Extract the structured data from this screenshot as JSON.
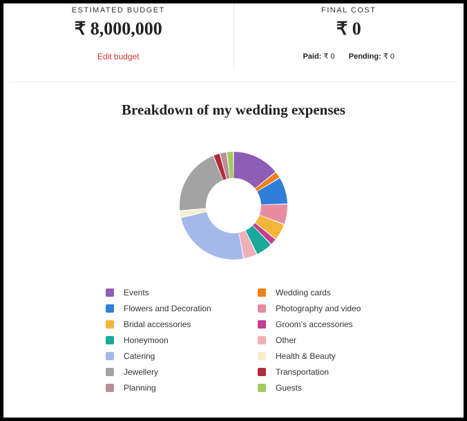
{
  "budget": {
    "label": "ESTIMATED BUDGET",
    "currency": "₹",
    "amount": "8,000,000",
    "edit_label": "Edit budget"
  },
  "final": {
    "label": "FINAL COST",
    "currency": "₹",
    "amount": "0",
    "paid_label": "Paid:",
    "paid_value": "₹ 0",
    "pending_label": "Pending:",
    "pending_value": "₹ 0"
  },
  "breakdown": {
    "title": "Breakdown of my wedding expenses",
    "chart": {
      "type": "donut",
      "outer_radius": 78,
      "inner_radius": 40,
      "background_color": "#ffffff",
      "segment_gap_deg": 1.0,
      "slices": [
        {
          "label": "Events",
          "value": 14,
          "color": "#8e5db5"
        },
        {
          "label": "Wedding cards",
          "value": 2,
          "color": "#ef7f1a"
        },
        {
          "label": "Flowers and Decoration",
          "value": 8,
          "color": "#2f7ed8"
        },
        {
          "label": "Photography and video",
          "value": 6,
          "color": "#e78ca0"
        },
        {
          "label": "Bridal accessories",
          "value": 5,
          "color": "#f2b63c"
        },
        {
          "label": "Groom's accessories",
          "value": 2,
          "color": "#c43e8f"
        },
        {
          "label": "Honeymoon",
          "value": 5,
          "color": "#1aa89a"
        },
        {
          "label": "Other",
          "value": 4,
          "color": "#efb0b8"
        },
        {
          "label": "Catering",
          "value": 24,
          "color": "#a4b9ea"
        },
        {
          "label": "Health & Beauty",
          "value": 2,
          "color": "#f5efd0"
        },
        {
          "label": "Jewellery",
          "value": 20,
          "color": "#a3a3a3"
        },
        {
          "label": "Transportation",
          "value": 2,
          "color": "#b02c3a"
        },
        {
          "label": "Planning",
          "value": 2,
          "color": "#b88f9a"
        },
        {
          "label": "Guests",
          "value": 2,
          "color": "#a4c95d"
        }
      ]
    }
  }
}
